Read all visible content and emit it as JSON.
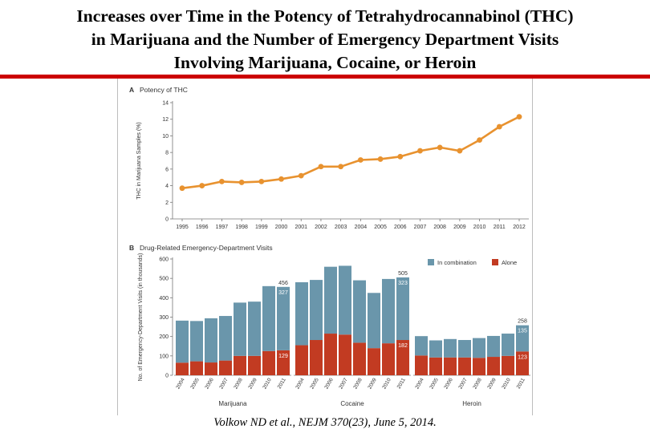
{
  "slide": {
    "title_lines": [
      "Increases over Time in the Potency of Tetrahydrocannabinol (THC)",
      "in Marijuana and the Number of Emergency Department Visits",
      "Involving Marijuana, Cocaine, or Heroin"
    ],
    "citation": "Volkow ND et al., NEJM 370(23), June 5, 2014."
  },
  "colors": {
    "title_rule": "#cc0000",
    "line": "#e8922f",
    "in_combination": "#6a96ab",
    "alone": "#c23b22"
  },
  "chart_data": [
    {
      "type": "line",
      "panel": "A",
      "title": "Potency of THC",
      "ylabel": "THC in Marijuana Samples (%)",
      "xlabel": "",
      "ylim": [
        0,
        14
      ],
      "yticks": [
        0,
        2,
        4,
        6,
        8,
        10,
        12,
        14
      ],
      "x": [
        "1995",
        "1996",
        "1997",
        "1998",
        "1999",
        "2000",
        "2001",
        "2002",
        "2003",
        "2004",
        "2005",
        "2006",
        "2007",
        "2008",
        "2009",
        "2010",
        "2011",
        "2012"
      ],
      "series": [
        {
          "name": "Potency of THC",
          "values": [
            3.7,
            4.0,
            4.5,
            4.4,
            4.5,
            4.8,
            5.2,
            6.3,
            6.3,
            7.1,
            7.2,
            7.5,
            8.2,
            8.6,
            8.2,
            9.5,
            11.1,
            12.3
          ]
        }
      ]
    },
    {
      "type": "bar",
      "panel": "B",
      "title": "Drug-Related Emergency-Department Visits",
      "ylabel": "No. of Emergency-Department Visits (in thousands)",
      "ylim": [
        0,
        600
      ],
      "yticks": [
        0,
        100,
        200,
        300,
        400,
        500,
        600
      ],
      "legend": [
        "In combination",
        "Alone"
      ],
      "legend_position": "top-right",
      "groups": [
        {
          "name": "Marijuana",
          "categories": [
            "2004",
            "2005",
            "2006",
            "2007",
            "2008",
            "2009",
            "2010",
            "2011"
          ],
          "alone": [
            65,
            72,
            66,
            76,
            100,
            100,
            125,
            129
          ],
          "in_combination": [
            217,
            208,
            228,
            230,
            275,
            280,
            335,
            327
          ],
          "labels": [
            {
              "index": 7,
              "text": "456",
              "position": "above"
            },
            {
              "index": 7,
              "text": "327",
              "position": "combination"
            },
            {
              "index": 7,
              "text": "129",
              "position": "alone"
            }
          ]
        },
        {
          "name": "Cocaine",
          "categories": [
            "2004",
            "2005",
            "2006",
            "2007",
            "2008",
            "2009",
            "2010",
            "2011"
          ],
          "alone": [
            155,
            182,
            215,
            210,
            168,
            140,
            165,
            182
          ],
          "in_combination": [
            325,
            310,
            345,
            355,
            322,
            285,
            332,
            323
          ],
          "labels": [
            {
              "index": 7,
              "text": "505",
              "position": "above"
            },
            {
              "index": 7,
              "text": "323",
              "position": "combination"
            },
            {
              "index": 7,
              "text": "182",
              "position": "alone"
            }
          ]
        },
        {
          "name": "Heroin",
          "categories": [
            "2004",
            "2005",
            "2006",
            "2007",
            "2008",
            "2009",
            "2010",
            "2011"
          ],
          "alone": [
            102,
            92,
            92,
            92,
            90,
            95,
            100,
            123
          ],
          "in_combination": [
            100,
            88,
            95,
            90,
            102,
            108,
            115,
            135
          ],
          "labels": [
            {
              "index": 7,
              "text": "258",
              "position": "above"
            },
            {
              "index": 7,
              "text": "135",
              "position": "combination"
            },
            {
              "index": 7,
              "text": "123",
              "position": "alone"
            }
          ]
        }
      ]
    }
  ]
}
